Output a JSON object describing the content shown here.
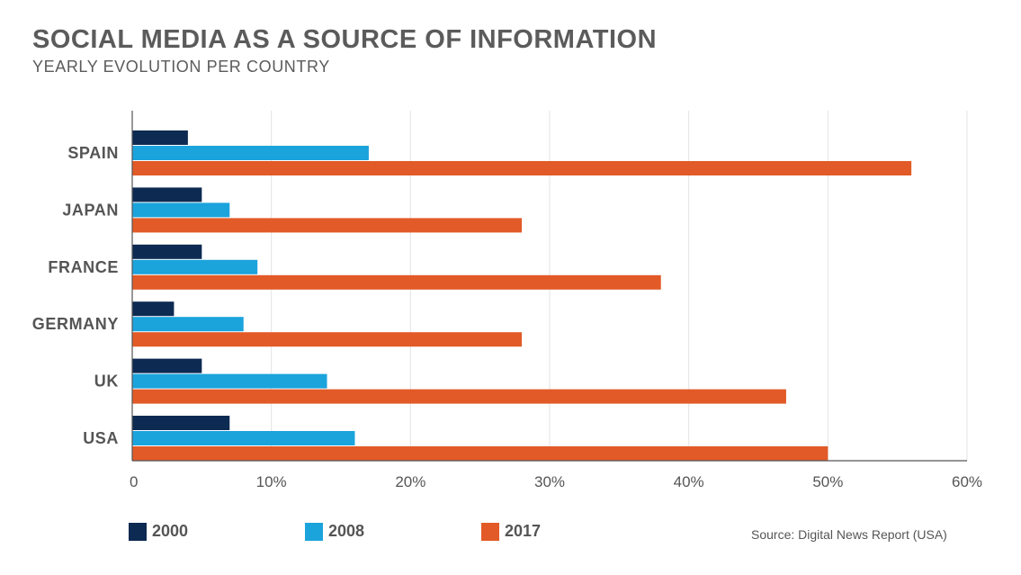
{
  "header": {
    "title": "SOCIAL MEDIA AS A SOURCE OF INFORMATION",
    "subtitle": "YEARLY EVOLUTION PER COUNTRY"
  },
  "source": "Source: Digital News Report (USA)",
  "colors": {
    "2000": "#0d2a52",
    "2008": "#1ba3dc",
    "2017": "#e25a27",
    "grid": "#e3e3e3",
    "axis": "#555555"
  },
  "chart_data": {
    "type": "bar",
    "orientation": "horizontal",
    "categories": [
      "SPAIN",
      "JAPAN",
      "FRANCE",
      "GERMANY",
      "UK",
      "USA"
    ],
    "series": [
      {
        "name": "2000",
        "values": [
          4,
          5,
          5,
          3,
          5,
          7
        ]
      },
      {
        "name": "2008",
        "values": [
          17,
          7,
          9,
          8,
          14,
          16
        ]
      },
      {
        "name": "2017",
        "values": [
          56,
          28,
          38,
          28,
          47,
          50
        ]
      }
    ],
    "xlim": [
      0,
      60
    ],
    "xticks": [
      0,
      10,
      20,
      30,
      40,
      50,
      60
    ],
    "xtick_labels": [
      "0",
      "10%",
      "20%",
      "30%",
      "40%",
      "50%",
      "60%"
    ],
    "grid": true,
    "legend_position": "bottom-left"
  }
}
